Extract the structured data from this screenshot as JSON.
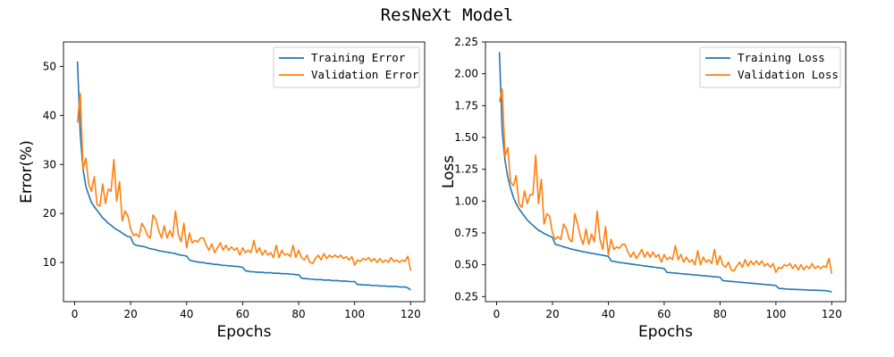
{
  "figure": {
    "title": "ResNeXt Model"
  },
  "chart_data": [
    {
      "type": "line",
      "xlabel": "Epochs",
      "ylabel": "Error(%)",
      "xlim": [
        -4,
        125
      ],
      "ylim": [
        2,
        55
      ],
      "xticks": [
        0,
        20,
        40,
        60,
        80,
        100,
        120
      ],
      "yticks": [
        10,
        20,
        30,
        40,
        50
      ],
      "ytick_labels": [
        "10",
        "20",
        "30",
        "40",
        "50"
      ],
      "legend": "top-right",
      "grid": false,
      "series": [
        {
          "name": "Training Error",
          "color": "#1f77b4",
          "x": [
            1,
            2,
            3,
            4,
            5,
            6,
            7,
            8,
            9,
            10,
            11,
            12,
            13,
            14,
            15,
            16,
            17,
            18,
            19,
            20,
            21,
            22,
            23,
            24,
            25,
            26,
            27,
            28,
            29,
            30,
            31,
            32,
            33,
            34,
            35,
            36,
            37,
            38,
            39,
            40,
            41,
            42,
            43,
            44,
            45,
            46,
            47,
            48,
            49,
            50,
            51,
            52,
            53,
            54,
            55,
            56,
            57,
            58,
            59,
            60,
            61,
            62,
            63,
            64,
            65,
            66,
            67,
            68,
            69,
            70,
            71,
            72,
            73,
            74,
            75,
            76,
            77,
            78,
            79,
            80,
            81,
            82,
            83,
            84,
            85,
            86,
            87,
            88,
            89,
            90,
            91,
            92,
            93,
            94,
            95,
            96,
            97,
            98,
            99,
            100,
            101,
            102,
            103,
            104,
            105,
            106,
            107,
            108,
            109,
            110,
            111,
            112,
            113,
            114,
            115,
            116,
            117,
            118,
            119,
            120
          ],
          "values": [
            51.0,
            36.0,
            29.0,
            25.5,
            23.8,
            22.2,
            21.4,
            20.6,
            19.9,
            19.1,
            18.6,
            18.0,
            17.6,
            17.1,
            16.7,
            16.4,
            16.0,
            15.6,
            15.3,
            15.2,
            13.8,
            13.5,
            13.4,
            13.3,
            13.2,
            13.0,
            12.8,
            12.7,
            12.6,
            12.4,
            12.3,
            12.2,
            12.1,
            12.0,
            11.9,
            11.8,
            11.6,
            11.5,
            11.4,
            11.3,
            10.5,
            10.3,
            10.2,
            10.1,
            10.0,
            10.0,
            9.8,
            9.8,
            9.7,
            9.6,
            9.6,
            9.5,
            9.4,
            9.4,
            9.3,
            9.3,
            9.2,
            9.2,
            9.1,
            9.0,
            8.3,
            8.2,
            8.1,
            8.1,
            8.0,
            8.0,
            8.0,
            7.9,
            7.9,
            7.9,
            7.8,
            7.8,
            7.8,
            7.7,
            7.7,
            7.7,
            7.6,
            7.6,
            7.5,
            7.5,
            6.8,
            6.7,
            6.7,
            6.6,
            6.6,
            6.5,
            6.5,
            6.5,
            6.4,
            6.4,
            6.4,
            6.3,
            6.3,
            6.3,
            6.2,
            6.2,
            6.2,
            6.1,
            6.1,
            6.1,
            5.5,
            5.5,
            5.4,
            5.4,
            5.4,
            5.3,
            5.3,
            5.3,
            5.2,
            5.2,
            5.2,
            5.1,
            5.1,
            5.1,
            5.1,
            5.0,
            5.0,
            5.0,
            4.8,
            4.4
          ]
        },
        {
          "name": "Validation Error",
          "color": "#ff7f0e",
          "x": [
            1,
            2,
            3,
            4,
            5,
            6,
            7,
            8,
            9,
            10,
            11,
            12,
            13,
            14,
            15,
            16,
            17,
            18,
            19,
            20,
            21,
            22,
            23,
            24,
            25,
            26,
            27,
            28,
            29,
            30,
            31,
            32,
            33,
            34,
            35,
            36,
            37,
            38,
            39,
            40,
            41,
            42,
            43,
            44,
            45,
            46,
            47,
            48,
            49,
            50,
            51,
            52,
            53,
            54,
            55,
            56,
            57,
            58,
            59,
            60,
            61,
            62,
            63,
            64,
            65,
            66,
            67,
            68,
            69,
            70,
            71,
            72,
            73,
            74,
            75,
            76,
            77,
            78,
            79,
            80,
            81,
            82,
            83,
            84,
            85,
            86,
            87,
            88,
            89,
            90,
            91,
            92,
            93,
            94,
            95,
            96,
            97,
            98,
            99,
            100,
            101,
            102,
            103,
            104,
            105,
            106,
            107,
            108,
            109,
            110,
            111,
            112,
            113,
            114,
            115,
            116,
            117,
            118,
            119,
            120
          ],
          "values": [
            38.5,
            44.5,
            29.0,
            31.3,
            26.0,
            24.5,
            27.5,
            21.8,
            21.5,
            26.0,
            22.0,
            25.0,
            24.5,
            31.0,
            22.5,
            26.5,
            18.5,
            20.5,
            19.5,
            16.8,
            15.5,
            15.8,
            15.2,
            18.0,
            17.0,
            15.5,
            15.0,
            19.7,
            18.8,
            16.5,
            15.0,
            17.5,
            15.0,
            16.5,
            15.2,
            20.5,
            15.8,
            14.2,
            18.0,
            13.0,
            16.0,
            14.0,
            14.5,
            14.2,
            15.0,
            15.0,
            13.5,
            12.5,
            13.8,
            12.0,
            13.0,
            14.0,
            12.5,
            13.5,
            12.5,
            13.2,
            12.5,
            13.0,
            11.5,
            13.0,
            12.0,
            12.5,
            12.0,
            14.5,
            12.0,
            13.0,
            11.5,
            12.5,
            11.5,
            12.0,
            11.0,
            13.5,
            11.0,
            12.5,
            11.5,
            11.8,
            11.2,
            13.5,
            11.0,
            12.5,
            11.0,
            10.5,
            11.5,
            10.0,
            9.8,
            10.8,
            11.5,
            10.5,
            11.8,
            10.8,
            11.5,
            11.0,
            11.5,
            11.0,
            11.5,
            10.8,
            11.2,
            10.5,
            11.2,
            9.5,
            10.5,
            10.2,
            10.8,
            10.5,
            11.0,
            10.2,
            10.8,
            10.0,
            10.8,
            10.0,
            10.5,
            10.0,
            11.0,
            10.2,
            10.5,
            10.0,
            10.5,
            10.2,
            11.3,
            8.3
          ]
        }
      ]
    },
    {
      "type": "line",
      "xlabel": "Epochs",
      "ylabel": "Loss",
      "xlim": [
        -4,
        125
      ],
      "ylim": [
        0.21,
        2.25
      ],
      "xticks": [
        0,
        20,
        40,
        60,
        80,
        100,
        120
      ],
      "yticks": [
        0.25,
        0.5,
        0.75,
        1.0,
        1.25,
        1.5,
        1.75,
        2.0,
        2.25
      ],
      "ytick_labels": [
        "0.25",
        "0.50",
        "0.75",
        "1.00",
        "1.25",
        "1.50",
        "1.75",
        "2.00",
        "2.25"
      ],
      "legend": "top-right",
      "grid": false,
      "series": [
        {
          "name": "Training Loss",
          "color": "#1f77b4",
          "x": [
            1,
            2,
            3,
            4,
            5,
            6,
            7,
            8,
            9,
            10,
            11,
            12,
            13,
            14,
            15,
            16,
            17,
            18,
            19,
            20,
            21,
            22,
            23,
            24,
            25,
            26,
            27,
            28,
            29,
            30,
            31,
            32,
            33,
            34,
            35,
            36,
            37,
            38,
            39,
            40,
            41,
            42,
            43,
            44,
            45,
            46,
            47,
            48,
            49,
            50,
            51,
            52,
            53,
            54,
            55,
            56,
            57,
            58,
            59,
            60,
            61,
            62,
            63,
            64,
            65,
            66,
            67,
            68,
            69,
            70,
            71,
            72,
            73,
            74,
            75,
            76,
            77,
            78,
            79,
            80,
            81,
            82,
            83,
            84,
            85,
            86,
            87,
            88,
            89,
            90,
            91,
            92,
            93,
            94,
            95,
            96,
            97,
            98,
            99,
            100,
            101,
            102,
            103,
            104,
            105,
            106,
            107,
            108,
            109,
            110,
            111,
            112,
            113,
            114,
            115,
            116,
            117,
            118,
            119,
            120
          ],
          "values": [
            2.17,
            1.55,
            1.32,
            1.19,
            1.1,
            1.03,
            0.98,
            0.94,
            0.91,
            0.88,
            0.85,
            0.83,
            0.81,
            0.79,
            0.77,
            0.76,
            0.745,
            0.735,
            0.725,
            0.715,
            0.66,
            0.655,
            0.648,
            0.64,
            0.635,
            0.628,
            0.622,
            0.617,
            0.612,
            0.607,
            0.602,
            0.598,
            0.594,
            0.59,
            0.586,
            0.582,
            0.578,
            0.574,
            0.57,
            0.566,
            0.53,
            0.526,
            0.522,
            0.518,
            0.515,
            0.512,
            0.509,
            0.506,
            0.503,
            0.5,
            0.497,
            0.494,
            0.491,
            0.488,
            0.485,
            0.482,
            0.479,
            0.476,
            0.473,
            0.47,
            0.44,
            0.438,
            0.436,
            0.434,
            0.432,
            0.43,
            0.428,
            0.426,
            0.424,
            0.422,
            0.42,
            0.418,
            0.416,
            0.414,
            0.412,
            0.41,
            0.408,
            0.406,
            0.404,
            0.402,
            0.375,
            0.373,
            0.371,
            0.369,
            0.367,
            0.365,
            0.363,
            0.361,
            0.359,
            0.357,
            0.355,
            0.353,
            0.351,
            0.349,
            0.347,
            0.345,
            0.343,
            0.341,
            0.339,
            0.337,
            0.315,
            0.313,
            0.311,
            0.309,
            0.308,
            0.307,
            0.306,
            0.305,
            0.304,
            0.303,
            0.302,
            0.301,
            0.3,
            0.3,
            0.299,
            0.298,
            0.297,
            0.296,
            0.292,
            0.285
          ]
        },
        {
          "name": "Validation Loss",
          "color": "#ff7f0e",
          "x": [
            1,
            2,
            3,
            4,
            5,
            6,
            7,
            8,
            9,
            10,
            11,
            12,
            13,
            14,
            15,
            16,
            17,
            18,
            19,
            20,
            21,
            22,
            23,
            24,
            25,
            26,
            27,
            28,
            29,
            30,
            31,
            32,
            33,
            34,
            35,
            36,
            37,
            38,
            39,
            40,
            41,
            42,
            43,
            44,
            45,
            46,
            47,
            48,
            49,
            50,
            51,
            52,
            53,
            54,
            55,
            56,
            57,
            58,
            59,
            60,
            61,
            62,
            63,
            64,
            65,
            66,
            67,
            68,
            69,
            70,
            71,
            72,
            73,
            74,
            75,
            76,
            77,
            78,
            79,
            80,
            81,
            82,
            83,
            84,
            85,
            86,
            87,
            88,
            89,
            90,
            91,
            92,
            93,
            94,
            95,
            96,
            97,
            98,
            99,
            100,
            101,
            102,
            103,
            104,
            105,
            106,
            107,
            108,
            109,
            110,
            111,
            112,
            113,
            114,
            115,
            116,
            117,
            118,
            119,
            120
          ],
          "values": [
            1.78,
            1.88,
            1.35,
            1.42,
            1.15,
            1.12,
            1.2,
            0.98,
            0.95,
            1.08,
            0.98,
            1.05,
            1.05,
            1.36,
            0.98,
            1.17,
            0.82,
            0.9,
            0.88,
            0.75,
            0.7,
            0.72,
            0.7,
            0.82,
            0.78,
            0.7,
            0.68,
            0.9,
            0.82,
            0.72,
            0.66,
            0.78,
            0.66,
            0.74,
            0.68,
            0.92,
            0.7,
            0.62,
            0.8,
            0.58,
            0.7,
            0.62,
            0.64,
            0.63,
            0.66,
            0.66,
            0.6,
            0.56,
            0.6,
            0.55,
            0.58,
            0.62,
            0.56,
            0.6,
            0.56,
            0.6,
            0.56,
            0.58,
            0.52,
            0.58,
            0.54,
            0.56,
            0.54,
            0.65,
            0.54,
            0.58,
            0.52,
            0.56,
            0.52,
            0.54,
            0.5,
            0.61,
            0.5,
            0.56,
            0.52,
            0.54,
            0.51,
            0.62,
            0.5,
            0.57,
            0.5,
            0.48,
            0.52,
            0.46,
            0.45,
            0.49,
            0.52,
            0.48,
            0.54,
            0.49,
            0.53,
            0.5,
            0.53,
            0.5,
            0.53,
            0.49,
            0.51,
            0.48,
            0.51,
            0.44,
            0.48,
            0.47,
            0.5,
            0.49,
            0.51,
            0.47,
            0.5,
            0.46,
            0.5,
            0.46,
            0.49,
            0.47,
            0.51,
            0.47,
            0.49,
            0.47,
            0.49,
            0.48,
            0.55,
            0.43
          ]
        }
      ]
    }
  ]
}
